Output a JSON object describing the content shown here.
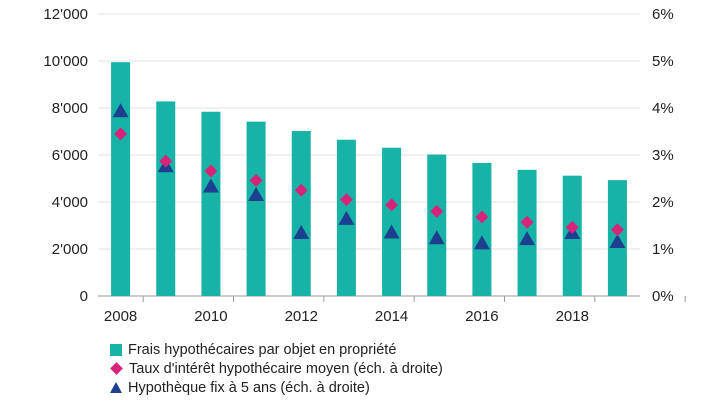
{
  "chart_data": {
    "type": "bar",
    "x": [
      2008,
      2009,
      2010,
      2011,
      2012,
      2013,
      2014,
      2015,
      2016,
      2017,
      2018,
      2019
    ],
    "x_tick_labels": [
      "2008",
      "2010",
      "2012",
      "2014",
      "2016",
      "2018"
    ],
    "left_axis": {
      "ylim": [
        0,
        12000
      ],
      "tick_labels": [
        "0",
        "2'000",
        "4'000",
        "6'000",
        "8'000",
        "10'000",
        "12'000"
      ]
    },
    "right_axis": {
      "ylim": [
        0,
        6
      ],
      "unit": "%",
      "tick_labels": [
        "0%",
        "1%",
        "2%",
        "3%",
        "4%",
        "5%",
        "6%"
      ]
    },
    "grid": "horizontal",
    "legend_position": "bottom-left",
    "series": [
      {
        "name": "Frais hypothécaires par objet en propriété",
        "type": "bar",
        "axis": "left",
        "color": "#17b3a7",
        "values": [
          9950,
          8280,
          7840,
          7420,
          7020,
          6650,
          6310,
          6020,
          5660,
          5370,
          5120,
          4930
        ]
      },
      {
        "name": "Taux d'intérêt hypothécaire moyen (éch. à droite)",
        "type": "scatter",
        "marker": "diamond",
        "axis": "right",
        "color": "#d8237a",
        "values": [
          3.45,
          2.87,
          2.66,
          2.46,
          2.25,
          2.05,
          1.94,
          1.8,
          1.68,
          1.57,
          1.46,
          1.41
        ]
      },
      {
        "name": "Hypothèque fix à 5 ans (éch. à droite)",
        "type": "scatter",
        "marker": "triangle",
        "axis": "right",
        "color": "#1d3f8f",
        "values": [
          3.93,
          2.76,
          2.33,
          2.15,
          1.34,
          1.64,
          1.35,
          1.23,
          1.12,
          1.21,
          1.34,
          1.15
        ]
      }
    ]
  }
}
